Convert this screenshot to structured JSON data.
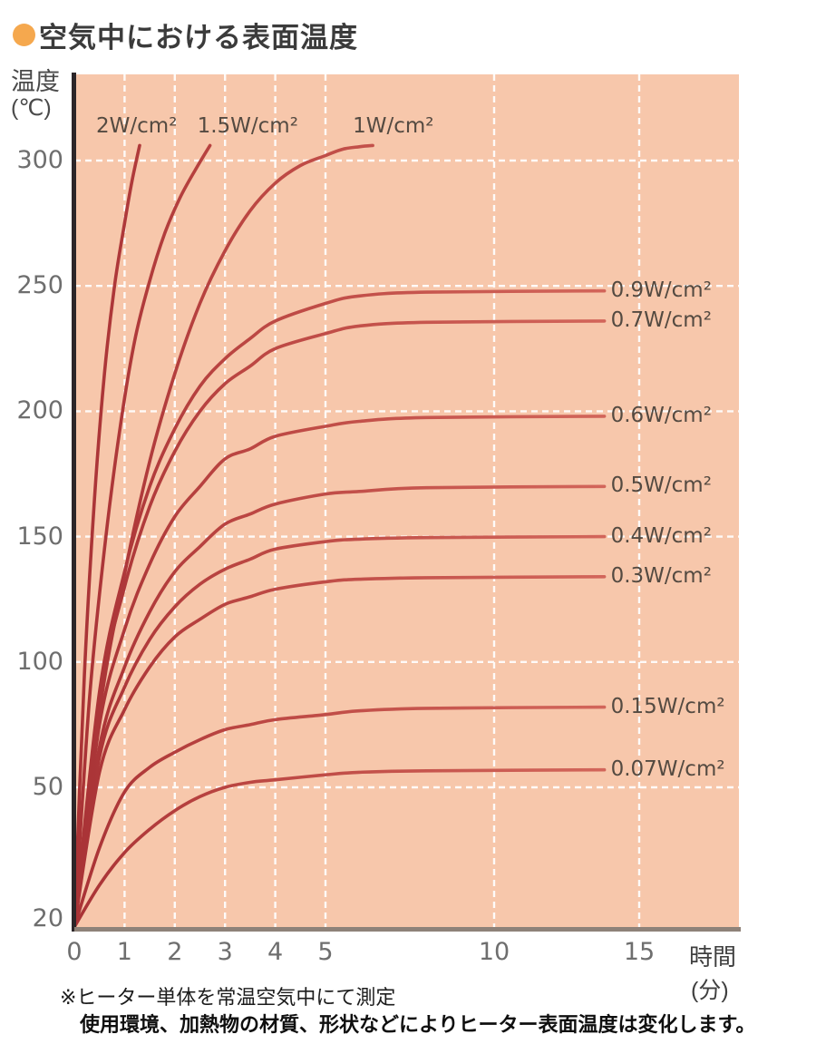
{
  "header": {
    "title": "空気中における表面温度",
    "bullet_color": "#f5a84e"
  },
  "notes": {
    "line1": "※ヒーター単体を常温空気中にて測定",
    "line2": "使用環境、加熱物の材質、形状などによりヒーター表面温度は変化します。"
  },
  "chart_data": {
    "type": "line",
    "title": "空気中における表面温度",
    "x_axis": {
      "name": "時間",
      "unit": "(分)",
      "ticks": [
        0,
        1,
        2,
        3,
        4,
        5,
        10,
        15
      ],
      "scale_note": "0-5 min expanded, 5-15 min compressed"
    },
    "y_axis": {
      "name": "温度",
      "unit": "(℃)",
      "ticks": [
        300,
        250,
        200,
        150,
        100,
        50,
        20
      ],
      "range": [
        20,
        310
      ]
    },
    "grid": {
      "color": "#ffffff",
      "style": "dashed",
      "h_lines": [
        300,
        250,
        200,
        150,
        100,
        50
      ],
      "v_lines": [
        1,
        2,
        3,
        4,
        5,
        10,
        15
      ]
    },
    "colors": {
      "plot_bg": "#f7c7ab",
      "curve_dark": "#a93336",
      "curve_mid": "#bb4642",
      "curve_light": "#d4685c",
      "x_axis_line": "#8e8279",
      "y_axis_line": "#2c2629"
    },
    "series": [
      {
        "label": "2W/cm²",
        "label_pos": "top",
        "label_dx": -48,
        "points": [
          [
            0,
            20
          ],
          [
            0.2,
            95
          ],
          [
            0.4,
            165
          ],
          [
            0.6,
            215
          ],
          [
            0.8,
            250
          ],
          [
            1.0,
            275
          ],
          [
            1.15,
            292
          ],
          [
            1.3,
            306
          ]
        ]
      },
      {
        "label": "1.5W/cm²",
        "label_pos": "top",
        "label_dx": -14,
        "points": [
          [
            0,
            20
          ],
          [
            0.3,
            85
          ],
          [
            0.6,
            145
          ],
          [
            0.9,
            192
          ],
          [
            1.2,
            228
          ],
          [
            1.5,
            252
          ],
          [
            1.8,
            271
          ],
          [
            2.1,
            285
          ],
          [
            2.4,
            296
          ],
          [
            2.7,
            306
          ]
        ]
      },
      {
        "label": "1W/cm²",
        "label_pos": "top",
        "label_dx": -22,
        "points": [
          [
            0,
            20
          ],
          [
            0.5,
            80
          ],
          [
            1,
            135
          ],
          [
            1.5,
            180
          ],
          [
            2,
            215
          ],
          [
            2.5,
            243
          ],
          [
            3,
            264
          ],
          [
            3.5,
            280
          ],
          [
            4,
            291
          ],
          [
            4.5,
            298
          ],
          [
            5,
            302
          ],
          [
            5.5,
            304.5
          ],
          [
            6,
            305.5
          ],
          [
            6.4,
            306
          ]
        ]
      },
      {
        "label": "0.9W/cm²",
        "label_pos": "right",
        "saturation_temp": 248,
        "points": [
          [
            0,
            20
          ],
          [
            0.5,
            88
          ],
          [
            1,
            136
          ],
          [
            1.5,
            170
          ],
          [
            2,
            193
          ],
          [
            2.5,
            210
          ],
          [
            3,
            221
          ],
          [
            3.5,
            229
          ],
          [
            4,
            236
          ],
          [
            5,
            243
          ],
          [
            6,
            246
          ],
          [
            8,
            247.5
          ],
          [
            13.8,
            248
          ]
        ]
      },
      {
        "label": "0.7W/cm²",
        "label_pos": "right",
        "saturation_temp": 236,
        "points": [
          [
            0,
            20
          ],
          [
            0.5,
            85
          ],
          [
            1,
            130
          ],
          [
            1.5,
            162
          ],
          [
            2,
            184
          ],
          [
            2.5,
            200
          ],
          [
            3,
            211
          ],
          [
            3.5,
            218
          ],
          [
            4,
            225
          ],
          [
            5,
            231
          ],
          [
            6,
            234
          ],
          [
            8,
            235.5
          ],
          [
            13.8,
            236
          ]
        ]
      },
      {
        "label": "0.6W/cm²",
        "label_pos": "right",
        "saturation_temp": 198,
        "points": [
          [
            0,
            20
          ],
          [
            0.5,
            75
          ],
          [
            1,
            113
          ],
          [
            1.5,
            139
          ],
          [
            2,
            158
          ],
          [
            2.5,
            170
          ],
          [
            3,
            181
          ],
          [
            3.5,
            185
          ],
          [
            4,
            190
          ],
          [
            5,
            194
          ],
          [
            6,
            196
          ],
          [
            8,
            197.5
          ],
          [
            13.8,
            198
          ]
        ]
      },
      {
        "label": "0.5W/cm²",
        "label_pos": "right",
        "saturation_temp": 170,
        "points": [
          [
            0,
            20
          ],
          [
            0.5,
            66
          ],
          [
            1,
            98
          ],
          [
            1.5,
            120
          ],
          [
            2,
            136
          ],
          [
            2.5,
            146
          ],
          [
            3,
            155
          ],
          [
            3.5,
            159
          ],
          [
            4,
            163
          ],
          [
            5,
            167
          ],
          [
            6,
            168
          ],
          [
            8,
            169.5
          ],
          [
            13.8,
            170
          ]
        ]
      },
      {
        "label": "0.4W/cm²",
        "label_pos": "right",
        "saturation_temp": 150,
        "points": [
          [
            0,
            20
          ],
          [
            0.5,
            62
          ],
          [
            1,
            90
          ],
          [
            1.5,
            109
          ],
          [
            2,
            122
          ],
          [
            2.5,
            131
          ],
          [
            3,
            137
          ],
          [
            3.5,
            141
          ],
          [
            4,
            145
          ],
          [
            5,
            148
          ],
          [
            6,
            149
          ],
          [
            8,
            149.6
          ],
          [
            13.8,
            150
          ]
        ]
      },
      {
        "label": "0.3W/cm²",
        "label_pos": "right",
        "saturation_temp": 134,
        "points": [
          [
            0,
            20
          ],
          [
            0.5,
            56
          ],
          [
            1,
            81
          ],
          [
            1.5,
            98
          ],
          [
            2,
            110
          ],
          [
            2.5,
            117
          ],
          [
            3,
            123
          ],
          [
            3.5,
            126
          ],
          [
            4,
            129
          ],
          [
            5,
            132
          ],
          [
            6,
            133
          ],
          [
            8,
            133.6
          ],
          [
            13.8,
            134
          ]
        ]
      },
      {
        "label": "0.15W/cm²",
        "label_pos": "right",
        "saturation_temp": 82,
        "points": [
          [
            0,
            20
          ],
          [
            0.5,
            37
          ],
          [
            1,
            49
          ],
          [
            1.5,
            58
          ],
          [
            2,
            64
          ],
          [
            2.5,
            69
          ],
          [
            3,
            73
          ],
          [
            3.5,
            75
          ],
          [
            4,
            77
          ],
          [
            5,
            79
          ],
          [
            6,
            80.5
          ],
          [
            8,
            81.5
          ],
          [
            13.8,
            82
          ]
        ]
      },
      {
        "label": "0.07W/cm²",
        "label_pos": "right",
        "saturation_temp": 57,
        "points": [
          [
            0,
            20
          ],
          [
            0.5,
            29
          ],
          [
            1,
            36
          ],
          [
            1.5,
            41
          ],
          [
            2,
            45
          ],
          [
            2.5,
            48
          ],
          [
            3,
            50
          ],
          [
            3.5,
            52
          ],
          [
            4,
            53
          ],
          [
            5,
            55
          ],
          [
            6,
            56
          ],
          [
            8,
            56.6
          ],
          [
            13.8,
            57
          ]
        ]
      }
    ]
  }
}
